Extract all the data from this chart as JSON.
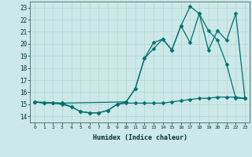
{
  "bg_color": "#cce8e8",
  "line_color": "#007070",
  "xlabel": "Humidex (Indice chaleur)",
  "ylabel_ticks": [
    14,
    15,
    16,
    17,
    18,
    19,
    20,
    21,
    22,
    23
  ],
  "xtick_labels": [
    "0",
    "1",
    "2",
    "3",
    "4",
    "5",
    "6",
    "7",
    "8",
    "9",
    "10",
    "11",
    "12",
    "13",
    "14",
    "15",
    "16",
    "17",
    "18",
    "19",
    "20",
    "21",
    "22",
    "23"
  ],
  "xlim": [
    -0.5,
    23.5
  ],
  "ylim": [
    13.5,
    23.5
  ],
  "line1_x": [
    0,
    1,
    2,
    3,
    4,
    5,
    6,
    7,
    8,
    9,
    10,
    11,
    12,
    13,
    14,
    15,
    16,
    17,
    18,
    19,
    20,
    21,
    22,
    23
  ],
  "line1_y": [
    15.2,
    15.1,
    15.1,
    15.0,
    14.8,
    14.4,
    14.3,
    14.3,
    14.5,
    15.0,
    15.1,
    15.1,
    15.1,
    15.1,
    15.1,
    15.2,
    15.3,
    15.4,
    15.5,
    15.5,
    15.6,
    15.6,
    15.6,
    15.5
  ],
  "line2_x": [
    0,
    1,
    2,
    3,
    4,
    5,
    6,
    7,
    8,
    9,
    10,
    11,
    12,
    13,
    14,
    15,
    16,
    17,
    18,
    19,
    20,
    21,
    22,
    23
  ],
  "line2_y": [
    15.2,
    15.1,
    15.1,
    15.1,
    14.8,
    14.4,
    14.3,
    14.3,
    14.5,
    15.0,
    15.2,
    16.3,
    18.8,
    19.6,
    20.4,
    19.5,
    21.5,
    20.1,
    22.5,
    21.1,
    20.3,
    18.3,
    15.5,
    15.5
  ],
  "line3_x": [
    0,
    3,
    10,
    11,
    12,
    13,
    14,
    15,
    16,
    17,
    18,
    19,
    20,
    21,
    22,
    23
  ],
  "line3_y": [
    15.2,
    15.1,
    15.2,
    16.3,
    18.8,
    20.1,
    20.4,
    19.5,
    21.5,
    23.1,
    22.5,
    19.5,
    21.1,
    20.3,
    22.5,
    15.5
  ]
}
